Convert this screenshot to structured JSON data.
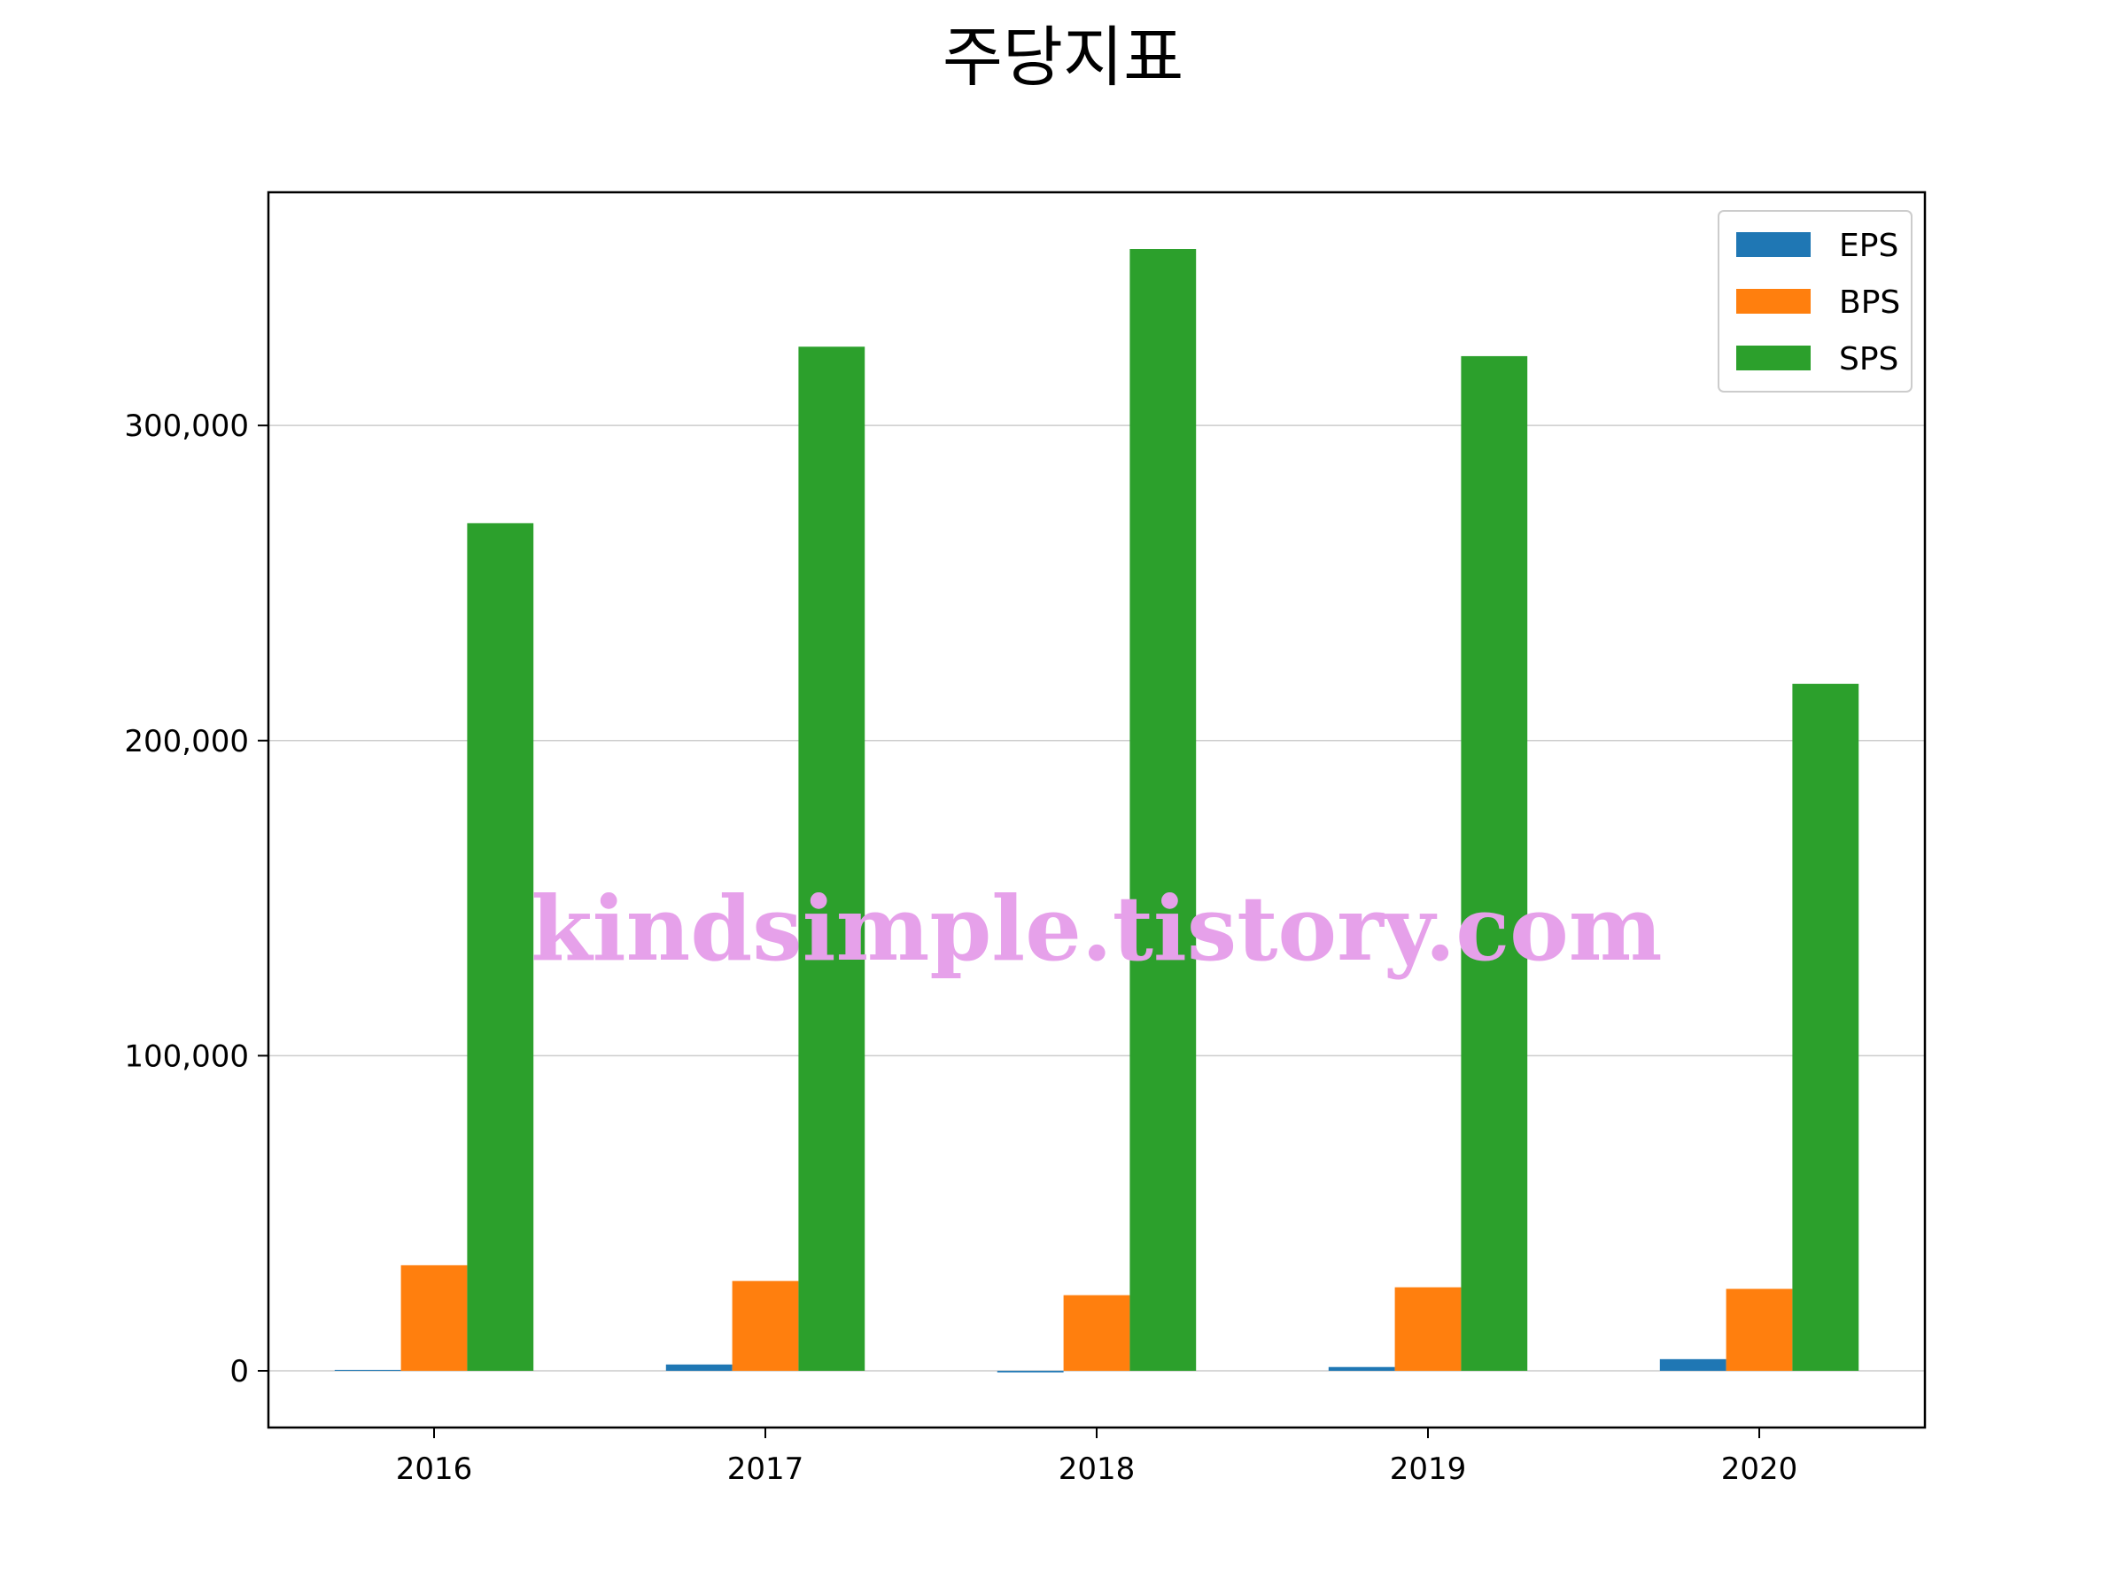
{
  "chart_data": {
    "type": "bar",
    "title": "주당지표",
    "categories": [
      "2016",
      "2017",
      "2018",
      "2019",
      "2020"
    ],
    "series": [
      {
        "name": "EPS",
        "color": "#1f77b4",
        "values": [
          300,
          2000,
          -500,
          1200,
          3700
        ]
      },
      {
        "name": "BPS",
        "color": "#ff7f0e",
        "values": [
          33500,
          28500,
          24000,
          26500,
          26000
        ]
      },
      {
        "name": "SPS",
        "color": "#2ca02c",
        "values": [
          269000,
          325000,
          356000,
          322000,
          218000
        ]
      }
    ],
    "ylim": [
      -18000,
      374000
    ],
    "yticks": [
      0,
      100000,
      200000,
      300000
    ],
    "ytick_labels": [
      "0",
      "100,000",
      "200,000",
      "300,000"
    ],
    "grid": "y",
    "legend_position": "top-right"
  },
  "watermark": "kindsimple.tistory.com"
}
